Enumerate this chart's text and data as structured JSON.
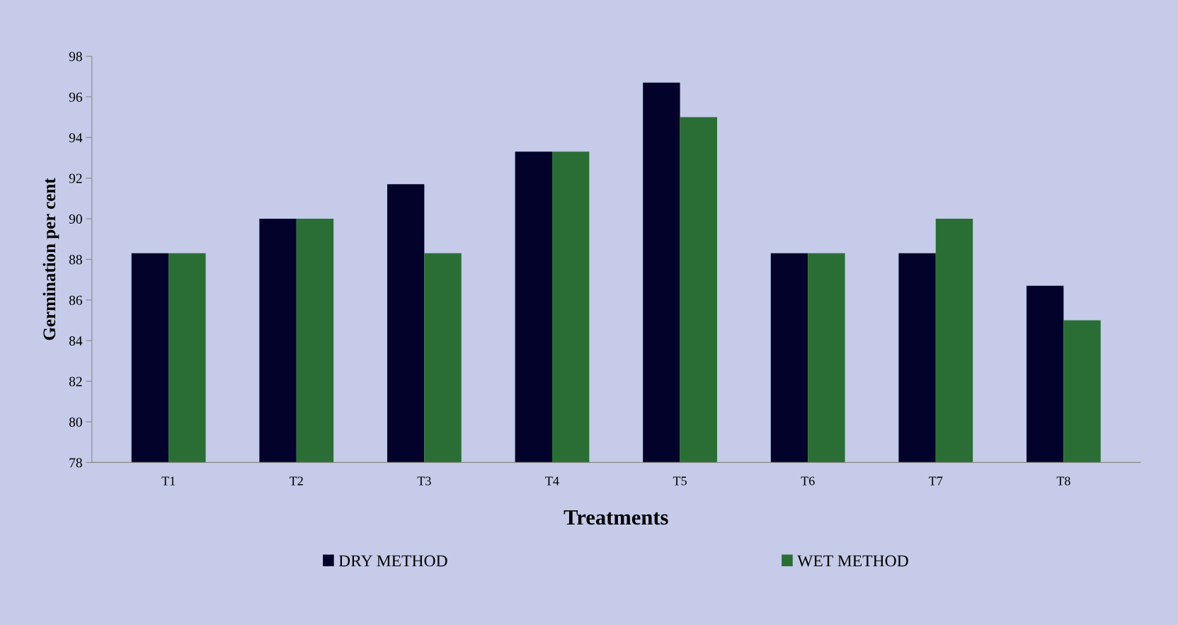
{
  "chart_data": {
    "type": "bar",
    "xlabel": "Treatments",
    "ylabel": "Germination per cent",
    "categories": [
      "T1",
      "T2",
      "T3",
      "T4",
      "T5",
      "T6",
      "T7",
      "T8"
    ],
    "series": [
      {
        "name": "DRY METHOD",
        "color": "#02022a",
        "values": [
          88.3,
          90.0,
          91.7,
          93.3,
          96.7,
          88.3,
          88.3,
          86.7
        ]
      },
      {
        "name": "WET METHOD",
        "color": "#2a6e35",
        "values": [
          88.3,
          90.0,
          88.3,
          93.3,
          95.0,
          88.3,
          90.0,
          85.0
        ]
      }
    ],
    "ylim": [
      78,
      98
    ],
    "yticks": [
      78,
      80,
      82,
      84,
      86,
      88,
      90,
      92,
      94,
      96,
      98
    ],
    "grid": false,
    "legend": "bottom"
  }
}
